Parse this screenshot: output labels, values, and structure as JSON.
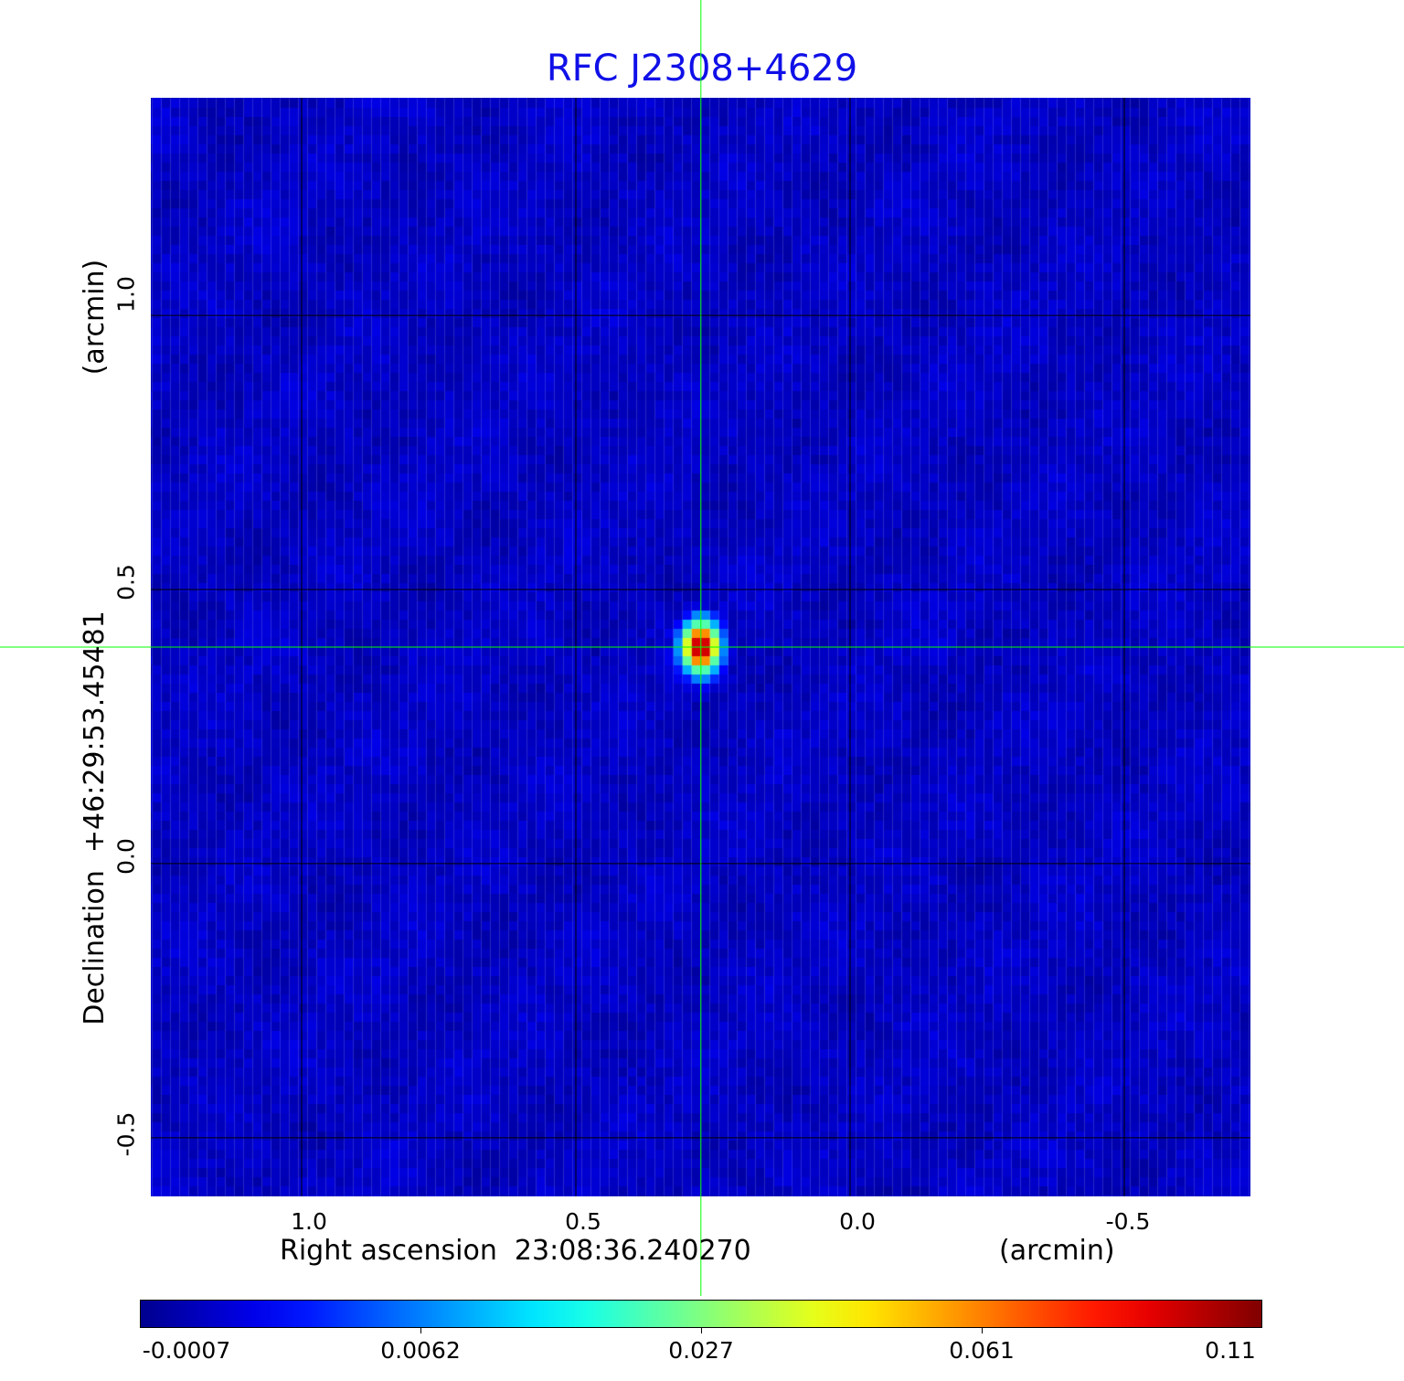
{
  "chart_data": {
    "type": "heatmap",
    "title": "RFC J2308+4629",
    "xlabel": "Right ascension  23:08:36.240270",
    "xunit": "(arcmin)",
    "ylabel": "Declination  +46:29:53.45481",
    "yunit": "(arcmin)",
    "xlim": [
      1.275,
      -0.73
    ],
    "ylim": [
      -0.607,
      1.397
    ],
    "xticks": [
      "1.0",
      "0.5",
      "0.0",
      "-0.5"
    ],
    "xtick_values": [
      1.0,
      0.5,
      0.0,
      -0.5
    ],
    "yticks": [
      "1.0",
      "0.5",
      "0.0",
      "-0.5"
    ],
    "ytick_values": [
      1.0,
      0.5,
      0.0,
      -0.5
    ],
    "grid": true,
    "crosshair": {
      "x": 0.272,
      "y": 0.395
    },
    "peak": {
      "x": 0.272,
      "y": 0.395,
      "value": 0.11
    },
    "colormap": "jet",
    "colorbar": {
      "ticks": [
        "-0.0007",
        "0.0062",
        "0.027",
        "0.061",
        "0.11"
      ],
      "tick_values": [
        -0.0007,
        0.0062,
        0.027,
        0.061,
        0.11
      ],
      "location": "bottom"
    }
  },
  "colors": {
    "title": "#1010e8",
    "crosshair": "#00ff00",
    "grid": "#000000"
  }
}
